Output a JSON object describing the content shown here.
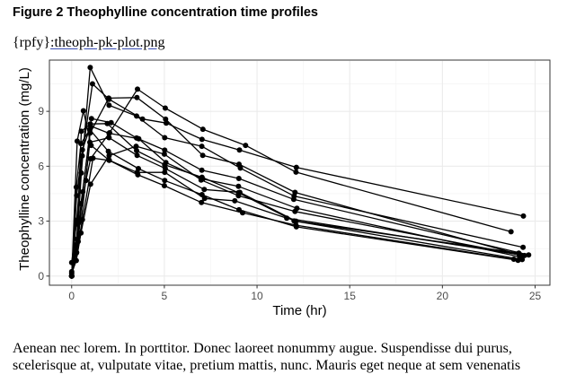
{
  "figure": {
    "title": "Figure 2 Theophylline concentration time profiles",
    "ref_prefix": "{rpfy}",
    "ref_link": ":theoph-pk-plot.png"
  },
  "paragraph": "Aenean nec lorem. In porttitor. Donec laoreet nonummy augue. Suspendisse dui purus, scelerisque at, vulputate vitae, pretium mattis, nunc. Mauris eget neque at sem venenatis",
  "chart_data": {
    "type": "line",
    "title": "",
    "xlabel": "Time (hr)",
    "ylabel": "Theophylline concentration (mg/L)",
    "xlim": [
      -1.2,
      25.8
    ],
    "ylim": [
      -0.5,
      11.8
    ],
    "xticks": [
      0,
      5,
      10,
      15,
      20,
      25
    ],
    "yticks": [
      0,
      3,
      6,
      9
    ],
    "grid": true,
    "line_color": "#000000",
    "series": [
      {
        "x": [
          0,
          0.25,
          0.57,
          1.12,
          2.02,
          3.82,
          5.1,
          7.03,
          9.05,
          12.12,
          24.37
        ],
        "y": [
          0.74,
          2.84,
          6.57,
          10.5,
          9.66,
          8.58,
          8.36,
          7.47,
          6.89,
          5.94,
          3.28
        ]
      },
      {
        "x": [
          0,
          0.27,
          0.52,
          1.0,
          1.92,
          3.5,
          5.02,
          7.03,
          9.0,
          12.0,
          24.3
        ],
        "y": [
          0.0,
          1.72,
          7.91,
          8.31,
          8.33,
          6.85,
          6.08,
          5.4,
          4.55,
          3.01,
          0.9
        ]
      },
      {
        "x": [
          0,
          0.27,
          0.58,
          1.02,
          2.02,
          3.62,
          5.08,
          7.07,
          9.0,
          12.15,
          24.17
        ],
        "y": [
          0.0,
          4.4,
          6.9,
          8.2,
          7.8,
          7.5,
          6.2,
          5.3,
          4.9,
          3.7,
          1.05
        ]
      },
      {
        "x": [
          0,
          0.35,
          0.6,
          1.07,
          2.13,
          3.5,
          5.02,
          7.02,
          9.02,
          11.98,
          24.65
        ],
        "y": [
          0.0,
          1.89,
          4.6,
          8.6,
          8.38,
          7.54,
          6.88,
          5.78,
          5.33,
          4.19,
          1.15
        ]
      },
      {
        "x": [
          0,
          0.3,
          0.52,
          1.0,
          2.02,
          3.5,
          5.02,
          7.02,
          9.1,
          12.0,
          24.35
        ],
        "y": [
          0.0,
          2.02,
          5.63,
          11.4,
          9.33,
          8.74,
          7.56,
          7.09,
          5.9,
          4.37,
          1.57
        ]
      },
      {
        "x": [
          0,
          0.27,
          0.58,
          1.15,
          2.03,
          3.57,
          5.0,
          7.0,
          9.22,
          12.1,
          23.85
        ],
        "y": [
          0.0,
          1.29,
          3.08,
          6.44,
          6.32,
          5.53,
          4.94,
          4.02,
          3.46,
          2.78,
          0.92
        ]
      },
      {
        "x": [
          0,
          0.25,
          0.5,
          1.02,
          2.02,
          3.48,
          5.0,
          6.98,
          9.0,
          12.05,
          24.22
        ],
        "y": [
          0.15,
          0.85,
          2.35,
          5.02,
          6.58,
          7.09,
          6.66,
          5.25,
          4.39,
          3.53,
          1.15
        ]
      },
      {
        "x": [
          0,
          0.25,
          0.52,
          0.98,
          2.02,
          3.53,
          5.05,
          7.15,
          9.07,
          12.1,
          24.12
        ],
        "y": [
          0.0,
          3.05,
          3.05,
          7.31,
          7.56,
          6.59,
          5.88,
          4.73,
          4.57,
          3.0,
          1.25
        ]
      },
      {
        "x": [
          0,
          0.3,
          0.63,
          1.05,
          2.02,
          3.53,
          5.02,
          7.17,
          8.8,
          11.6,
          24.43
        ],
        "y": [
          0.0,
          7.37,
          9.03,
          7.14,
          6.33,
          5.66,
          5.67,
          4.24,
          4.11,
          3.16,
          1.12
        ]
      },
      {
        "x": [
          0,
          0.37,
          0.77,
          1.02,
          2.05,
          3.55,
          5.05,
          7.08,
          9.38,
          12.1,
          23.7
        ],
        "y": [
          0.24,
          2.89,
          5.22,
          6.41,
          7.83,
          10.21,
          9.18,
          8.02,
          7.14,
          5.68,
          2.42
        ]
      },
      {
        "x": [
          0,
          0.25,
          0.5,
          0.98,
          1.98,
          3.6,
          5.02,
          7.03,
          9.03,
          12.12,
          24.08
        ],
        "y": [
          0.0,
          4.86,
          7.24,
          8.0,
          6.81,
          5.87,
          5.22,
          4.45,
          3.62,
          2.69,
          0.86
        ]
      },
      {
        "x": [
          0,
          0.25,
          0.5,
          1.0,
          2.0,
          3.52,
          5.07,
          7.07,
          9.03,
          12.05,
          24.15
        ],
        "y": [
          0.0,
          1.25,
          3.96,
          7.82,
          9.72,
          9.75,
          8.57,
          6.59,
          6.11,
          4.57,
          1.17
        ]
      }
    ]
  }
}
